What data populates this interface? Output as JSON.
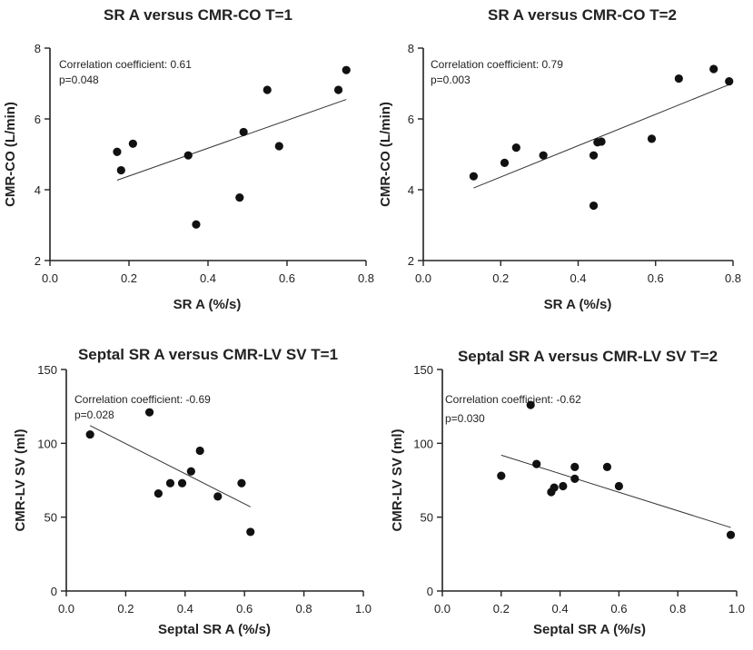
{
  "chart_data": [
    {
      "type": "scatter",
      "title": "SR A versus CMR-CO T=1",
      "xlabel": "SR A (%/s)",
      "ylabel": "CMR-CO  (L/min)",
      "xlim": [
        0,
        0.8
      ],
      "ylim": [
        2,
        8
      ],
      "xticks": [
        0,
        0.2,
        0.4,
        0.6,
        0.8
      ],
      "xtick_labels": [
        "0.0",
        "0.2",
        "0.4",
        "0.6",
        "0.8"
      ],
      "yticks": [
        2,
        4,
        6,
        8
      ],
      "ytick_labels": [
        "2",
        "4",
        "6",
        "8"
      ],
      "annotations": [
        "Correlation coefficient: 0.61",
        "p=0.048"
      ],
      "points": [
        {
          "x": 0.17,
          "y": 5.07
        },
        {
          "x": 0.18,
          "y": 4.55
        },
        {
          "x": 0.21,
          "y": 5.3
        },
        {
          "x": 0.35,
          "y": 4.97
        },
        {
          "x": 0.37,
          "y": 3.02
        },
        {
          "x": 0.48,
          "y": 3.78
        },
        {
          "x": 0.49,
          "y": 5.63
        },
        {
          "x": 0.55,
          "y": 6.82
        },
        {
          "x": 0.58,
          "y": 5.23
        },
        {
          "x": 0.73,
          "y": 6.82
        },
        {
          "x": 0.75,
          "y": 7.38
        }
      ],
      "fit_line": [
        {
          "x": 0.17,
          "y": 4.27
        },
        {
          "x": 0.75,
          "y": 6.55
        }
      ],
      "grid": false,
      "legend": "none"
    },
    {
      "type": "scatter",
      "title": "SR A versus CMR-CO T=2",
      "xlabel": "SR A (%/s)",
      "ylabel": "CMR-CO  (L/min)",
      "xlim": [
        0,
        0.8
      ],
      "ylim": [
        2,
        8
      ],
      "xticks": [
        0,
        0.2,
        0.4,
        0.6,
        0.8
      ],
      "xtick_labels": [
        "0.0",
        "0.2",
        "0.4",
        "0.6",
        "0.8"
      ],
      "yticks": [
        2,
        4,
        6,
        8
      ],
      "ytick_labels": [
        "2",
        "4",
        "6",
        "8"
      ],
      "annotations": [
        "Correlation coefficient: 0.79",
        "p=0.003"
      ],
      "points": [
        {
          "x": 0.13,
          "y": 4.38
        },
        {
          "x": 0.21,
          "y": 4.76
        },
        {
          "x": 0.24,
          "y": 5.19
        },
        {
          "x": 0.31,
          "y": 4.97
        },
        {
          "x": 0.44,
          "y": 4.97
        },
        {
          "x": 0.44,
          "y": 3.55
        },
        {
          "x": 0.45,
          "y": 5.34
        },
        {
          "x": 0.46,
          "y": 5.36
        },
        {
          "x": 0.59,
          "y": 5.44
        },
        {
          "x": 0.66,
          "y": 7.14
        },
        {
          "x": 0.75,
          "y": 7.41
        },
        {
          "x": 0.79,
          "y": 7.06
        }
      ],
      "fit_line": [
        {
          "x": 0.13,
          "y": 4.05
        },
        {
          "x": 0.79,
          "y": 6.97
        }
      ],
      "grid": false,
      "legend": "none"
    },
    {
      "type": "scatter",
      "title": "Septal SR A versus CMR-LV SV T=1",
      "xlabel": "Septal SR A (%/s)",
      "ylabel": "CMR-LV SV (ml)",
      "xlim": [
        0,
        1.0
      ],
      "ylim": [
        0,
        150
      ],
      "xticks": [
        0,
        0.2,
        0.4,
        0.6,
        0.8,
        1.0
      ],
      "xtick_labels": [
        "0.0",
        "0.2",
        "0.4",
        "0.6",
        "0.8",
        "1.0"
      ],
      "yticks": [
        0,
        50,
        100,
        150
      ],
      "ytick_labels": [
        "0",
        "50",
        "100",
        "150"
      ],
      "annotations": [
        "Correlation coefficient: -0.69",
        "p=0.028"
      ],
      "points": [
        {
          "x": 0.08,
          "y": 106
        },
        {
          "x": 0.28,
          "y": 121
        },
        {
          "x": 0.31,
          "y": 66
        },
        {
          "x": 0.35,
          "y": 73
        },
        {
          "x": 0.39,
          "y": 73
        },
        {
          "x": 0.42,
          "y": 81
        },
        {
          "x": 0.45,
          "y": 95
        },
        {
          "x": 0.51,
          "y": 64
        },
        {
          "x": 0.59,
          "y": 73
        },
        {
          "x": 0.62,
          "y": 40
        }
      ],
      "fit_line": [
        {
          "x": 0.08,
          "y": 112
        },
        {
          "x": 0.62,
          "y": 57
        }
      ],
      "grid": false,
      "legend": "none"
    },
    {
      "type": "scatter",
      "title": "Septal SR A versus CMR-LV SV T=2",
      "xlabel": "Septal SR A (%/s)",
      "ylabel": "CMR-LV SV (ml)",
      "xlim": [
        0,
        1.0
      ],
      "ylim": [
        0,
        150
      ],
      "xticks": [
        0,
        0.2,
        0.4,
        0.6,
        0.8,
        1.0
      ],
      "xtick_labels": [
        "0.0",
        "0.2",
        "0.4",
        "0.6",
        "0.8",
        "1.0"
      ],
      "yticks": [
        0,
        50,
        100,
        150
      ],
      "ytick_labels": [
        "0",
        "50",
        "100",
        "150"
      ],
      "annotations": [
        "Correlation coefficient: -0.62",
        "p=0.030"
      ],
      "points": [
        {
          "x": 0.2,
          "y": 78
        },
        {
          "x": 0.3,
          "y": 126
        },
        {
          "x": 0.32,
          "y": 86
        },
        {
          "x": 0.37,
          "y": 67
        },
        {
          "x": 0.38,
          "y": 70
        },
        {
          "x": 0.41,
          "y": 71
        },
        {
          "x": 0.45,
          "y": 84
        },
        {
          "x": 0.45,
          "y": 76
        },
        {
          "x": 0.56,
          "y": 84
        },
        {
          "x": 0.6,
          "y": 71
        },
        {
          "x": 0.98,
          "y": 38
        }
      ],
      "fit_line": [
        {
          "x": 0.2,
          "y": 92
        },
        {
          "x": 0.98,
          "y": 43
        }
      ],
      "grid": false,
      "legend": "none"
    }
  ]
}
